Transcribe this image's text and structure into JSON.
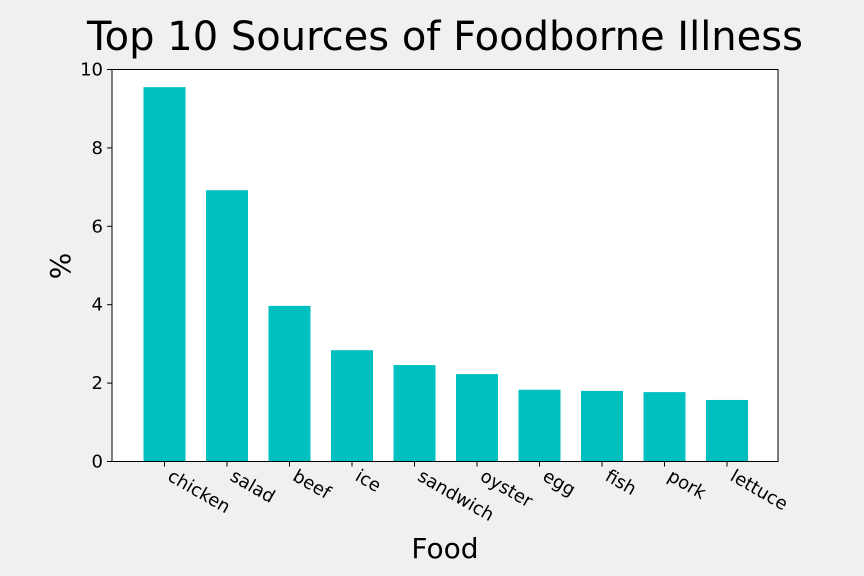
{
  "chart_data": {
    "type": "bar",
    "title": "Top 10 Sources of Foodborne Illness",
    "xlabel": "Food",
    "ylabel": "%",
    "categories": [
      "chicken",
      "salad",
      "beef",
      "ice",
      "sandwich",
      "oyster",
      "egg",
      "fish",
      "pork",
      "lettuce"
    ],
    "values": [
      9.55,
      6.92,
      3.97,
      2.84,
      2.46,
      2.23,
      1.83,
      1.8,
      1.77,
      1.57
    ],
    "ylim": [
      0,
      10
    ],
    "yticks": [
      0,
      2,
      4,
      6,
      8,
      10
    ],
    "grid": false,
    "legend": "none",
    "bar_color": "#00bfbf"
  }
}
